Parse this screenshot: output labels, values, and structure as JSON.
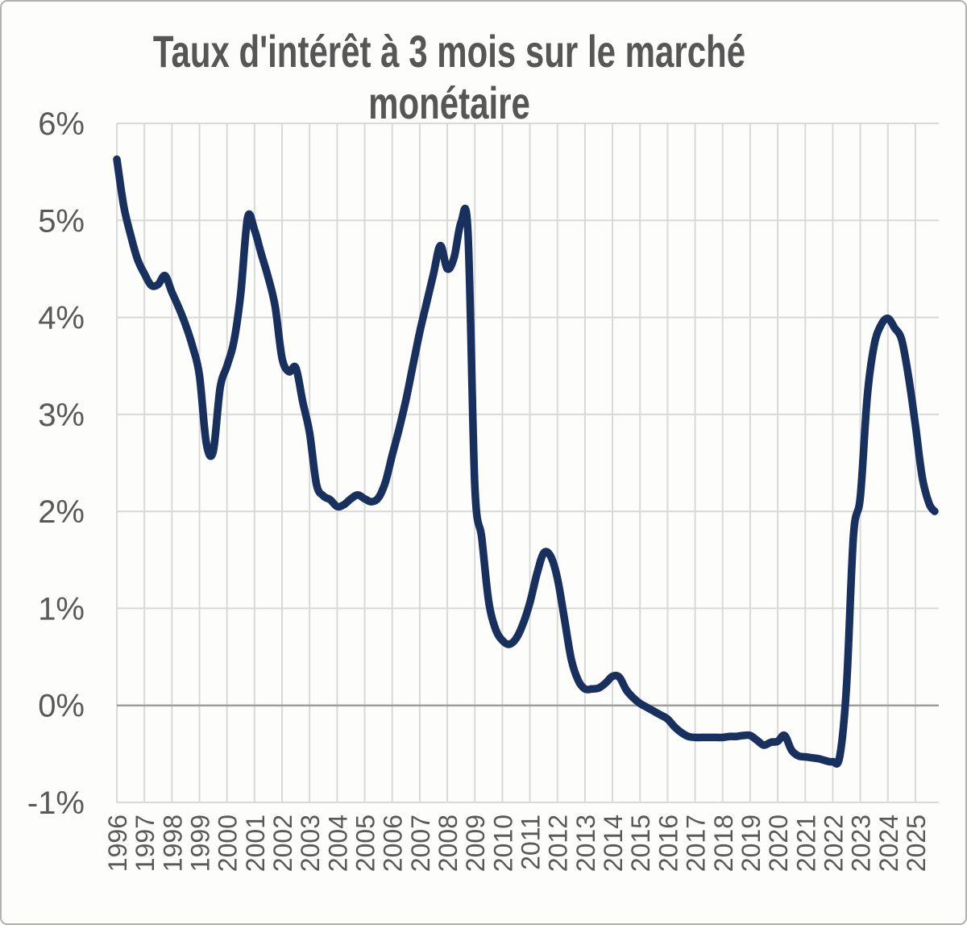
{
  "titles": {
    "line1": "Taux d'intérêt à 3 mois sur le marché",
    "line2": "monétaire"
  },
  "chart_data": {
    "type": "line",
    "title": "Taux d'intérêt à 3 mois sur le marché monétaire",
    "xlabel": "",
    "ylabel": "",
    "legend": false,
    "grid": true,
    "x_axis": {
      "min": 1996,
      "max": 2025.85,
      "ticks": [
        1996,
        1997,
        1998,
        1999,
        2000,
        2001,
        2002,
        2003,
        2004,
        2005,
        2006,
        2007,
        2008,
        2009,
        2010,
        2011,
        2012,
        2013,
        2014,
        2015,
        2016,
        2017,
        2018,
        2019,
        2020,
        2021,
        2022,
        2023,
        2024,
        2025
      ],
      "label_rotation": -90
    },
    "y_axis": {
      "min": -1,
      "max": 6,
      "ticks": [
        6,
        5,
        4,
        3,
        2,
        1,
        0,
        -1
      ],
      "tick_labels": [
        "6%",
        "5%",
        "4%",
        "3%",
        "2%",
        "1%",
        "0%",
        "-1%"
      ]
    },
    "series": [
      {
        "x_start": 1996.0,
        "x_step": 0.25,
        "smoothed": true,
        "values": [
          5.63,
          5.15,
          4.85,
          4.6,
          4.45,
          4.33,
          4.34,
          4.43,
          4.26,
          4.1,
          3.92,
          3.7,
          3.4,
          2.7,
          2.62,
          3.27,
          3.5,
          3.75,
          4.25,
          5.03,
          4.9,
          4.65,
          4.41,
          4.11,
          3.58,
          3.44,
          3.48,
          3.13,
          2.81,
          2.28,
          2.16,
          2.12,
          2.05,
          2.07,
          2.13,
          2.17,
          2.13,
          2.1,
          2.14,
          2.3,
          2.58,
          2.85,
          3.15,
          3.5,
          3.85,
          4.15,
          4.45,
          4.74,
          4.5,
          4.62,
          4.98,
          4.88,
          2.27,
          1.73,
          1.08,
          0.79,
          0.67,
          0.63,
          0.69,
          0.84,
          1.06,
          1.35,
          1.57,
          1.54,
          1.31,
          0.9,
          0.48,
          0.26,
          0.17,
          0.17,
          0.18,
          0.23,
          0.3,
          0.29,
          0.16,
          0.08,
          0.02,
          -0.02,
          -0.06,
          -0.1,
          -0.14,
          -0.22,
          -0.28,
          -0.32,
          -0.33,
          -0.33,
          -0.33,
          -0.33,
          -0.33,
          -0.32,
          -0.32,
          -0.31,
          -0.31,
          -0.36,
          -0.41,
          -0.38,
          -0.37,
          -0.31,
          -0.46,
          -0.52,
          -0.53,
          -0.54,
          -0.55,
          -0.57,
          -0.58,
          -0.53,
          0.2,
          1.75,
          2.15,
          3.18,
          3.71,
          3.92,
          3.99,
          3.89,
          3.77,
          3.39,
          2.89,
          2.35,
          2.08
        ],
        "end_point": [
          2025.7,
          2.0
        ]
      }
    ],
    "colors": {
      "line": "#17305e",
      "grid": "#d9d9d9",
      "zero_line": "#9e9e9e",
      "axis_text": "#595959",
      "title_text": "#565656",
      "border": "#b3b1ae",
      "background": "#fdfdfc"
    }
  }
}
